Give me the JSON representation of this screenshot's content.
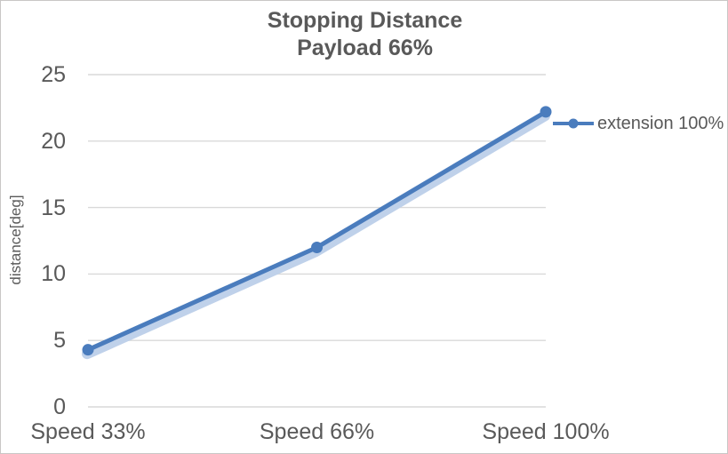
{
  "chart_data": {
    "type": "line",
    "title": "Stopping Distance",
    "subtitle": "Payload 66%",
    "categories": [
      "Speed 33%",
      "Speed 66%",
      "Speed 100%"
    ],
    "series": [
      {
        "name": "extension 100%",
        "values": [
          4.3,
          12,
          22.2
        ],
        "color": "#4a7cbd",
        "marker": "circle"
      }
    ],
    "line_shadow": {
      "enabled": true,
      "color": "#bfd1ea"
    },
    "ylabel": "distance[deg]",
    "xlabel": "",
    "ylim": [
      0,
      25
    ],
    "yticks": [
      0,
      5,
      10,
      15,
      20,
      25
    ],
    "grid": true,
    "gridline_color": "#d9d9d9",
    "text_color": "#595959",
    "legend_position": "right",
    "background_color": "#ffffff"
  }
}
